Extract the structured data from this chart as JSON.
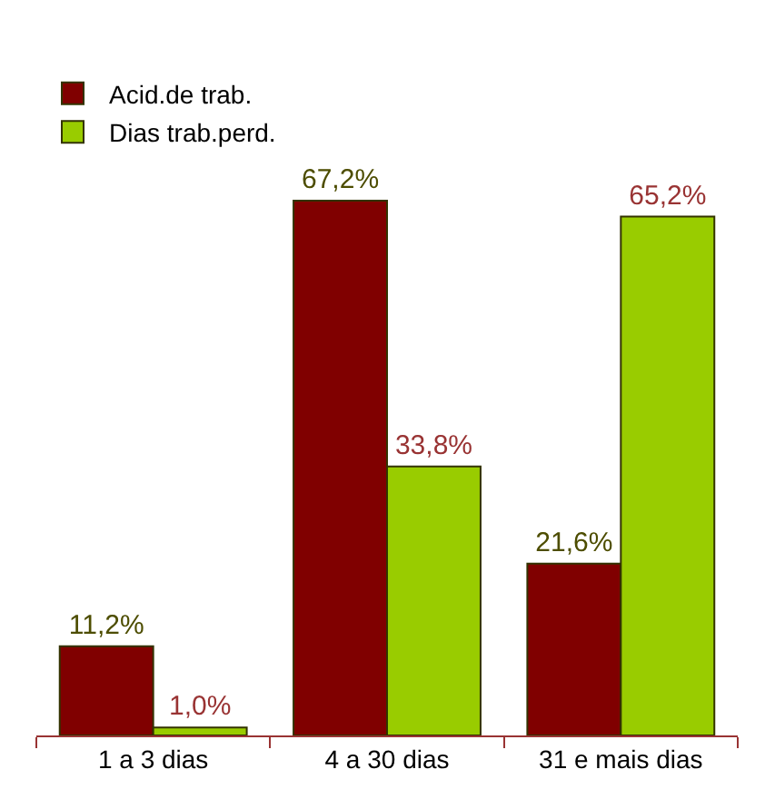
{
  "chart_data": {
    "type": "bar",
    "categories": [
      "1 a 3 dias",
      "4 a 30 dias",
      "31 e mais dias"
    ],
    "series": [
      {
        "name": "Acid.de trab.",
        "color": "#800000",
        "values": [
          11.2,
          67.2,
          21.6
        ],
        "value_labels": [
          "11,2%",
          "67,2%",
          "21,6%"
        ]
      },
      {
        "name": "Dias trab.perd.",
        "color": "#99cc00",
        "values": [
          1.0,
          33.8,
          65.2
        ],
        "value_labels": [
          "1,0%",
          "33,8%",
          "65,2%"
        ]
      }
    ],
    "legend": "top left",
    "grid": false
  }
}
